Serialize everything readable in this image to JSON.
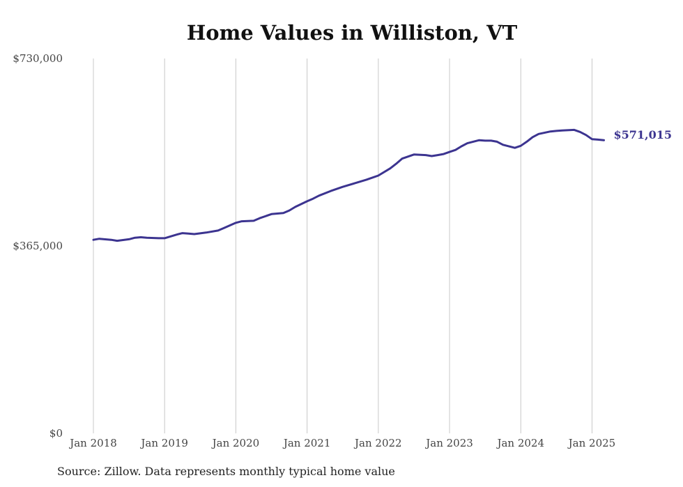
{
  "chart_data": {
    "type": "line",
    "title": "Home Values in Williston, VT",
    "xlabel": "",
    "ylabel": "",
    "y_tick_labels": [
      "$0",
      "$365,000",
      "$730,000"
    ],
    "y_ticks": [
      0,
      365000,
      730000
    ],
    "ylim": [
      0,
      730000
    ],
    "x_tick_labels": [
      "Jan 2018",
      "Jan 2019",
      "Jan 2020",
      "Jan 2021",
      "Jan 2022",
      "Jan 2023",
      "Jan 2024",
      "Jan 2025"
    ],
    "x_ticks": [
      "2018-01",
      "2019-01",
      "2020-01",
      "2021-01",
      "2022-01",
      "2023-01",
      "2024-01",
      "2025-01"
    ],
    "xlim": [
      "2018-01",
      "2025-04"
    ],
    "grid": "vertical",
    "end_label": "$571,015",
    "series": [
      {
        "color": "#3c3490",
        "x": [
          "2018-01",
          "2018-02",
          "2018-04",
          "2018-05",
          "2018-07",
          "2018-08",
          "2018-09",
          "2018-10",
          "2018-12",
          "2019-01",
          "2019-03",
          "2019-04",
          "2019-05",
          "2019-06",
          "2019-08",
          "2019-10",
          "2019-11",
          "2020-01",
          "2020-02",
          "2020-04",
          "2020-05",
          "2020-07",
          "2020-09",
          "2020-10",
          "2020-11",
          "2021-01",
          "2021-02",
          "2021-03",
          "2021-05",
          "2021-07",
          "2021-09",
          "2021-11",
          "2022-01",
          "2022-03",
          "2022-04",
          "2022-05",
          "2022-07",
          "2022-09",
          "2022-10",
          "2022-11",
          "2022-12",
          "2023-01",
          "2023-02",
          "2023-03",
          "2023-04",
          "2023-06",
          "2023-07",
          "2023-08",
          "2023-09",
          "2023-10",
          "2023-12",
          "2024-01",
          "2024-02",
          "2024-03",
          "2024-04",
          "2024-06",
          "2024-07",
          "2024-08",
          "2024-10",
          "2024-11",
          "2024-12",
          "2025-01",
          "2025-02",
          "2025-03"
        ],
        "y": [
          377000,
          379000,
          377000,
          375000,
          378000,
          381000,
          382000,
          381000,
          380000,
          380000,
          387000,
          390000,
          389000,
          388000,
          391000,
          395000,
          400000,
          410000,
          413000,
          414000,
          419000,
          427000,
          429000,
          434000,
          441000,
          452000,
          457000,
          463000,
          472000,
          480000,
          487000,
          494000,
          502000,
          516000,
          525000,
          535000,
          543000,
          542000,
          540000,
          542000,
          544000,
          548000,
          552000,
          559000,
          565000,
          571000,
          570000,
          570000,
          568000,
          562000,
          556000,
          560000,
          568000,
          577000,
          583000,
          588000,
          589000,
          590000,
          591000,
          587000,
          581000,
          573000,
          572000,
          571015
        ]
      }
    ]
  },
  "source_note": "Source: Zillow. Data represents monthly typical home value"
}
